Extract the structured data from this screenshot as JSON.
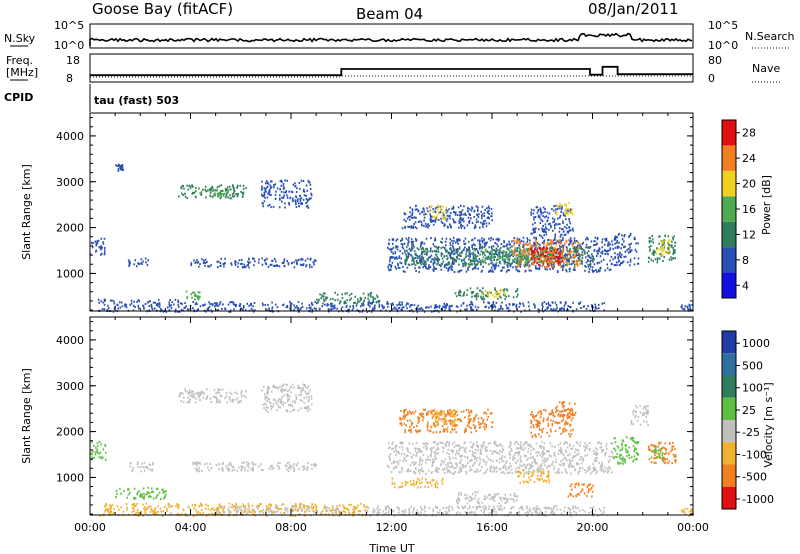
{
  "header": {
    "station": "Goose Bay (fitACF)",
    "beam": "Beam 04",
    "date": "08/Jan/2011"
  },
  "panels": {
    "sky": {
      "left_label": "N.Sky",
      "left_ticks": [
        "10^5",
        "10^0"
      ],
      "right_label": "N.Search",
      "right_ticks": [
        "10^5",
        "10^0"
      ]
    },
    "freq": {
      "left_label_1": "Freq.",
      "left_label_2": "[MHz]",
      "left_ticks": [
        "18",
        "8"
      ],
      "right_label": "Nave",
      "right_ticks": [
        "80",
        "0"
      ]
    },
    "cpid": {
      "label": "CPID",
      "value": "tau (fast) 503"
    }
  },
  "chart_data": [
    {
      "type": "heatmap",
      "name": "power",
      "ylabel": "Slant Range [km]",
      "yticks": [
        1000,
        2000,
        3000,
        4000
      ],
      "ylim": [
        180,
        4500
      ],
      "xlim": [
        0,
        24
      ],
      "colorbar": {
        "label": "Power [dB]",
        "ticks": [
          "4",
          "8",
          "12",
          "16",
          "20",
          "24",
          "28"
        ],
        "colors": [
          "#1010e0",
          "#2850b4",
          "#2f7d5a",
          "#4faa50",
          "#f0d020",
          "#f08020",
          "#e01010"
        ]
      },
      "regions": [
        {
          "t0": 0.0,
          "t1": 0.6,
          "r0": 1400,
          "r1": 1800,
          "c": "#2850b4"
        },
        {
          "t0": 0.3,
          "t1": 3.5,
          "r0": 180,
          "r1": 450,
          "c": "#2850b4"
        },
        {
          "t0": 1.0,
          "t1": 1.3,
          "r0": 3250,
          "r1": 3400,
          "c": "#2850b4"
        },
        {
          "t0": 3.5,
          "t1": 6.2,
          "r0": 2650,
          "r1": 2950,
          "c": "#2f7d5a"
        },
        {
          "t0": 4.0,
          "t1": 5.5,
          "r0": 2700,
          "r1": 2850,
          "c": "#4faa50"
        },
        {
          "t0": 6.8,
          "t1": 8.8,
          "r0": 2450,
          "r1": 3050,
          "c": "#2850b4"
        },
        {
          "t0": 1.5,
          "t1": 2.3,
          "r0": 1150,
          "r1": 1350,
          "c": "#2850b4"
        },
        {
          "t0": 4.0,
          "t1": 9.0,
          "r0": 1150,
          "r1": 1350,
          "c": "#2850b4"
        },
        {
          "t0": 3.8,
          "t1": 4.4,
          "r0": 450,
          "r1": 650,
          "c": "#4faa50"
        },
        {
          "t0": 3.5,
          "t1": 11.0,
          "r0": 180,
          "r1": 400,
          "c": "#2850b4"
        },
        {
          "t0": 9.0,
          "t1": 11.5,
          "r0": 350,
          "r1": 600,
          "c": "#2f7d5a"
        },
        {
          "t0": 11.8,
          "t1": 20.8,
          "r0": 1050,
          "r1": 1800,
          "c": "#2850b4"
        },
        {
          "t0": 12.5,
          "t1": 20.0,
          "r0": 1200,
          "r1": 1600,
          "c": "#2f7d5a"
        },
        {
          "t0": 15.5,
          "t1": 18.5,
          "r0": 1250,
          "r1": 1550,
          "c": "#4faa50"
        },
        {
          "t0": 16.8,
          "t1": 19.5,
          "r0": 1150,
          "r1": 1750,
          "c": "#f08020"
        },
        {
          "t0": 17.5,
          "t1": 18.8,
          "r0": 1200,
          "r1": 1600,
          "c": "#e01010"
        },
        {
          "t0": 12.3,
          "t1": 16.0,
          "r0": 2000,
          "r1": 2500,
          "c": "#2850b4"
        },
        {
          "t0": 13.5,
          "t1": 14.2,
          "r0": 2200,
          "r1": 2500,
          "c": "#f0d020"
        },
        {
          "t0": 17.5,
          "t1": 19.2,
          "r0": 1800,
          "r1": 2500,
          "c": "#2850b4"
        },
        {
          "t0": 18.5,
          "t1": 19.2,
          "r0": 2300,
          "r1": 2600,
          "c": "#f0d020"
        },
        {
          "t0": 14.5,
          "t1": 17.0,
          "r0": 450,
          "r1": 700,
          "c": "#2f7d5a"
        },
        {
          "t0": 15.5,
          "t1": 16.5,
          "r0": 500,
          "r1": 650,
          "c": "#f0d020"
        },
        {
          "t0": 11.0,
          "t1": 20.5,
          "r0": 180,
          "r1": 400,
          "c": "#2850b4"
        },
        {
          "t0": 20.8,
          "t1": 21.8,
          "r0": 1200,
          "r1": 1900,
          "c": "#2850b4"
        },
        {
          "t0": 22.2,
          "t1": 23.3,
          "r0": 1250,
          "r1": 1850,
          "c": "#2f7d5a"
        },
        {
          "t0": 22.5,
          "t1": 23.1,
          "r0": 1400,
          "r1": 1750,
          "c": "#f0d020"
        },
        {
          "t0": 23.5,
          "t1": 24.0,
          "r0": 180,
          "r1": 350,
          "c": "#2850b4"
        }
      ]
    },
    {
      "type": "heatmap",
      "name": "velocity",
      "ylabel": "Slant Range [km]",
      "xlabel": "Time UT",
      "yticks": [
        1000,
        2000,
        3000,
        4000
      ],
      "ylim": [
        180,
        4500
      ],
      "xlim": [
        0,
        24
      ],
      "xticks": [
        "00:00",
        "04:00",
        "08:00",
        "12:00",
        "16:00",
        "20:00",
        "00:00"
      ],
      "colorbar": {
        "label": "Velocity [m s⁻¹]",
        "ticks": [
          "1000",
          "500",
          "100",
          "25",
          "-25",
          "-100",
          "-500",
          "-1000"
        ],
        "colors": [
          "#1f3ca8",
          "#2f6fa0",
          "#2f7d5a",
          "#5cc040",
          "#c0c0bc",
          "#f0b030",
          "#f08020",
          "#e01010"
        ]
      },
      "regions": [
        {
          "t0": 0.0,
          "t1": 0.6,
          "r0": 1400,
          "r1": 1800,
          "c": "#5cc040"
        },
        {
          "t0": 0.3,
          "t1": 3.5,
          "r0": 180,
          "r1": 450,
          "c": "#f0b030"
        },
        {
          "t0": 1.0,
          "t1": 3.0,
          "r0": 550,
          "r1": 800,
          "c": "#5cc040"
        },
        {
          "t0": 1.5,
          "t1": 2.5,
          "r0": 1150,
          "r1": 1350,
          "c": "#c0c0bc"
        },
        {
          "t0": 3.5,
          "t1": 6.2,
          "r0": 2650,
          "r1": 2950,
          "c": "#c0c0bc"
        },
        {
          "t0": 6.8,
          "t1": 8.8,
          "r0": 2450,
          "r1": 3050,
          "c": "#c0c0bc"
        },
        {
          "t0": 4.0,
          "t1": 9.0,
          "r0": 1150,
          "r1": 1350,
          "c": "#c0c0bc"
        },
        {
          "t0": 3.5,
          "t1": 11.0,
          "r0": 180,
          "r1": 450,
          "c": "#f0b030"
        },
        {
          "t0": 5.0,
          "t1": 10.0,
          "r0": 250,
          "r1": 400,
          "c": "#c0c0bc"
        },
        {
          "t0": 11.8,
          "t1": 20.8,
          "r0": 1100,
          "r1": 1800,
          "c": "#c0c0bc"
        },
        {
          "t0": 12.3,
          "t1": 16.0,
          "r0": 2000,
          "r1": 2500,
          "c": "#f08020"
        },
        {
          "t0": 13.5,
          "t1": 14.5,
          "r0": 2100,
          "r1": 2500,
          "c": "#f0b030"
        },
        {
          "t0": 17.5,
          "t1": 19.2,
          "r0": 1900,
          "r1": 2500,
          "c": "#f08020"
        },
        {
          "t0": 18.5,
          "t1": 19.3,
          "r0": 2300,
          "r1": 2700,
          "c": "#f08020"
        },
        {
          "t0": 17.0,
          "t1": 18.3,
          "r0": 900,
          "r1": 1200,
          "c": "#f0b030"
        },
        {
          "t0": 19.0,
          "t1": 20.0,
          "r0": 600,
          "r1": 900,
          "c": "#f08020"
        },
        {
          "t0": 14.5,
          "t1": 17.0,
          "r0": 450,
          "r1": 700,
          "c": "#c0c0bc"
        },
        {
          "t0": 12.0,
          "t1": 14.0,
          "r0": 800,
          "r1": 1000,
          "c": "#f0b030"
        },
        {
          "t0": 11.0,
          "t1": 20.5,
          "r0": 180,
          "r1": 400,
          "c": "#c0c0bc"
        },
        {
          "t0": 20.8,
          "t1": 21.8,
          "r0": 1300,
          "r1": 1900,
          "c": "#5cc040"
        },
        {
          "t0": 22.2,
          "t1": 23.3,
          "r0": 1300,
          "r1": 1800,
          "c": "#f08020"
        },
        {
          "t0": 22.3,
          "t1": 22.8,
          "r0": 1400,
          "r1": 1700,
          "c": "#5cc040"
        },
        {
          "t0": 21.5,
          "t1": 22.2,
          "r0": 2150,
          "r1": 2600,
          "c": "#c0c0bc"
        },
        {
          "t0": 23.5,
          "t1": 24.0,
          "r0": 180,
          "r1": 350,
          "c": "#f0b030"
        }
      ]
    }
  ],
  "freq_series": {
    "freq_mhz": [
      [
        0,
        10.0
      ],
      [
        10.0,
        10.0
      ],
      [
        10.0,
        12.6
      ],
      [
        19.9,
        12.6
      ],
      [
        19.9,
        10.2
      ],
      [
        20.4,
        10.2
      ],
      [
        20.4,
        13.5
      ],
      [
        21.0,
        13.5
      ],
      [
        21.0,
        10.4
      ],
      [
        24,
        10.4
      ]
    ]
  }
}
